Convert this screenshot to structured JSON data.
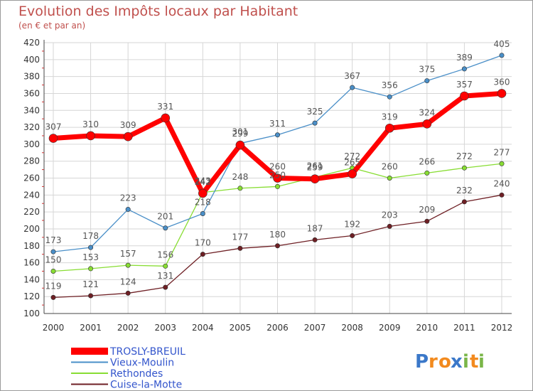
{
  "chart_data": {
    "type": "line",
    "title": "Evolution des Impôts locaux par Habitant",
    "subtitle": "(en € et par an)",
    "xlabel": "",
    "ylabel": "",
    "x": [
      "2000",
      "2001",
      "2002",
      "2003",
      "2004",
      "2005",
      "2006",
      "2007",
      "2008",
      "2009",
      "2010",
      "2011",
      "2012"
    ],
    "ylim": [
      100,
      420
    ],
    "yticks": [
      100,
      120,
      140,
      160,
      180,
      200,
      220,
      240,
      260,
      280,
      300,
      320,
      340,
      360,
      380,
      400,
      420
    ],
    "grid": true,
    "legend": "bottom-left",
    "series": [
      {
        "name": "Cuise-la-Motte",
        "color": "#6e1f24",
        "width": 1.3,
        "marker": 3.2,
        "values": [
          119,
          121,
          124,
          131,
          170,
          177,
          180,
          187,
          192,
          203,
          209,
          232,
          240
        ],
        "labels": [
          "119",
          "121",
          "124",
          "131",
          "170",
          "177",
          "180",
          "187",
          "192",
          "203",
          "209",
          "232",
          "240"
        ]
      },
      {
        "name": "Rethondes",
        "color": "#88dd33",
        "width": 1.3,
        "marker": 3.2,
        "values": [
          150,
          153,
          157,
          156,
          243,
          248,
          250,
          261,
          272,
          260,
          266,
          272,
          277
        ],
        "labels": [
          "150",
          "153",
          "157",
          "156",
          "243",
          "248",
          "250",
          "261",
          "272",
          "260",
          "266",
          "272",
          "277"
        ]
      },
      {
        "name": "Vieux-Moulin",
        "color": "#4a8fc8",
        "width": 1.3,
        "marker": 3.2,
        "values": [
          173,
          178,
          223,
          201,
          218,
          301,
          311,
          325,
          367,
          356,
          375,
          389,
          405
        ],
        "labels": [
          "173",
          "178",
          "223",
          "201",
          "218",
          "301",
          "311",
          "325",
          "367",
          "356",
          "375",
          "389",
          "405"
        ]
      },
      {
        "name": "TROSLY-BREUIL",
        "color": "#ff0000",
        "width": 7,
        "marker": 6,
        "values": [
          307,
          310,
          309,
          331,
          242,
          299,
          260,
          259,
          265,
          319,
          324,
          357,
          360
        ],
        "labels": [
          "307",
          "310",
          "309",
          "331",
          "242",
          "299",
          "260",
          "259",
          "265",
          "319",
          "324",
          "357",
          "360"
        ]
      }
    ],
    "legend_order": [
      "TROSLY-BREUIL",
      "Vieux-Moulin",
      "Rethondes",
      "Cuise-la-Motte"
    ]
  },
  "logo": {
    "text": "Proxiti",
    "letters": [
      "P",
      "r",
      "o",
      "x",
      "i",
      "t",
      "i"
    ],
    "colors": [
      "#3b78c9",
      "#f28a1e",
      "#f28a1e",
      "#3b78c9",
      "#7ab648",
      "#f28a1e",
      "#7ab648"
    ]
  }
}
